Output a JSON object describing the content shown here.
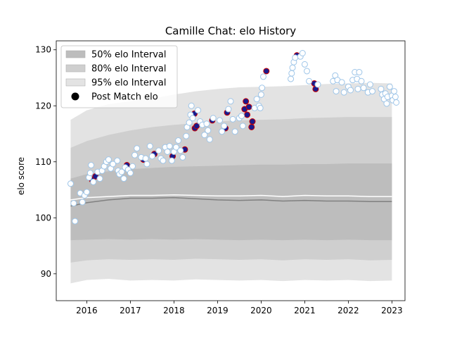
{
  "chart_data": {
    "type": "scatter",
    "title": "Camille Chat: elo History",
    "xlabel": "",
    "ylabel": "elo score",
    "xlim": [
      2015.3,
      2023.3
    ],
    "ylim": [
      85.2,
      131.6
    ],
    "x_ticks": [
      2016,
      2017,
      2018,
      2019,
      2020,
      2021,
      2022,
      2023
    ],
    "y_ticks": [
      90,
      100,
      110,
      120,
      130
    ],
    "grid": false,
    "legend_position": "top-left",
    "legend": [
      {
        "label": "50% elo Interval",
        "kind": "band",
        "color": "#bdbdbd"
      },
      {
        "label": "80% elo Interval",
        "kind": "band",
        "color": "#cfcfcf"
      },
      {
        "label": "95% elo Interval",
        "kind": "band",
        "color": "#e3e3e3"
      },
      {
        "label": "Post Match elo",
        "kind": "marker",
        "color": "#000000"
      }
    ],
    "colors": {
      "band_50": "#bdbdbd",
      "band_80": "#cfcfcf",
      "band_95": "#e3e3e3",
      "median_line": "#808080",
      "mean_line": "#ffffff",
      "point_win_fill": "#1a1a8c",
      "point_win_edge": "#cc0000",
      "point_loss_fill": "#ffffff",
      "point_loss_edge": "#9ec5e8"
    },
    "bands": {
      "x": [
        2015.63,
        2016.0,
        2016.5,
        2017.0,
        2017.5,
        2018.0,
        2018.5,
        2019.0,
        2019.5,
        2020.0,
        2020.5,
        2021.0,
        2021.5,
        2022.0,
        2022.5,
        2023.0
      ],
      "band95_low": [
        88.3,
        88.9,
        89.1,
        88.8,
        88.9,
        88.8,
        89.0,
        88.9,
        88.8,
        88.9,
        88.7,
        88.9,
        88.8,
        88.9,
        88.7,
        88.8
      ],
      "band95_high": [
        117.5,
        119.2,
        120.3,
        120.8,
        121.3,
        122.0,
        122.6,
        123.0,
        123.3,
        123.4,
        123.5,
        123.7,
        123.9,
        124.0,
        124.1,
        124.0
      ],
      "band80_low": [
        92.0,
        92.4,
        92.6,
        92.5,
        92.6,
        92.5,
        92.7,
        92.6,
        92.5,
        92.6,
        92.4,
        92.6,
        92.5,
        92.6,
        92.4,
        92.5
      ],
      "band80_high": [
        112.5,
        113.7,
        114.8,
        115.6,
        116.2,
        116.6,
        116.9,
        117.2,
        117.4,
        117.5,
        117.6,
        117.8,
        117.9,
        118.0,
        118.0,
        118.0
      ],
      "band50_low": [
        96.0,
        96.1,
        96.2,
        96.1,
        96.2,
        96.1,
        96.2,
        96.1,
        96.0,
        96.1,
        96.0,
        96.1,
        96.0,
        96.1,
        96.0,
        96.0
      ],
      "band50_high": [
        107.0,
        107.8,
        108.3,
        108.7,
        108.9,
        109.1,
        109.2,
        109.3,
        109.4,
        109.5,
        109.5,
        109.6,
        109.6,
        109.7,
        109.7,
        109.7
      ],
      "median": [
        102.1,
        102.7,
        103.2,
        103.5,
        103.5,
        103.6,
        103.4,
        103.2,
        103.1,
        103.2,
        103.0,
        103.1,
        103.0,
        103.0,
        102.9,
        102.9
      ],
      "mean": [
        103.2,
        103.6,
        103.8,
        104.0,
        104.0,
        104.1,
        104.0,
        103.9,
        103.9,
        104.0,
        103.8,
        104.0,
        103.9,
        103.9,
        103.8,
        103.8
      ]
    },
    "series": [
      {
        "name": "",
        "marker": "win",
        "points": [
          [
            2016.12,
            106.8
          ],
          [
            2016.2,
            107.4
          ],
          [
            2016.92,
            109.4
          ],
          [
            2017.3,
            110.4
          ],
          [
            2017.55,
            111.4
          ],
          [
            2017.97,
            111.0
          ],
          [
            2018.25,
            112.2
          ],
          [
            2018.47,
            118.6
          ],
          [
            2018.48,
            116.0
          ],
          [
            2018.52,
            116.4
          ],
          [
            2018.88,
            117.4
          ],
          [
            2019.18,
            116.0
          ],
          [
            2019.22,
            118.8
          ],
          [
            2019.62,
            119.4
          ],
          [
            2019.65,
            120.8
          ],
          [
            2019.68,
            118.4
          ],
          [
            2019.72,
            119.8
          ],
          [
            2019.78,
            116.2
          ],
          [
            2019.8,
            117.2
          ],
          [
            2020.12,
            126.2
          ],
          [
            2020.82,
            129.0
          ],
          [
            2021.22,
            124.0
          ],
          [
            2021.25,
            123.0
          ]
        ]
      },
      {
        "name": "",
        "marker": "loss",
        "points": [
          [
            2015.63,
            106.1
          ],
          [
            2015.7,
            102.6
          ],
          [
            2015.73,
            99.4
          ],
          [
            2015.85,
            104.4
          ],
          [
            2015.9,
            102.8
          ],
          [
            2015.95,
            104.0
          ],
          [
            2016.0,
            104.6
          ],
          [
            2016.05,
            107.2
          ],
          [
            2016.08,
            108.0
          ],
          [
            2016.1,
            109.4
          ],
          [
            2016.15,
            106.4
          ],
          [
            2016.25,
            108.2
          ],
          [
            2016.3,
            107.0
          ],
          [
            2016.35,
            108.4
          ],
          [
            2016.4,
            109.2
          ],
          [
            2016.45,
            110.0
          ],
          [
            2016.5,
            110.4
          ],
          [
            2016.55,
            108.8
          ],
          [
            2016.6,
            109.6
          ],
          [
            2016.7,
            110.2
          ],
          [
            2016.72,
            108.4
          ],
          [
            2016.75,
            107.8
          ],
          [
            2016.8,
            108.2
          ],
          [
            2016.85,
            107.0
          ],
          [
            2016.88,
            109.0
          ],
          [
            2016.95,
            108.6
          ],
          [
            2017.0,
            108.0
          ],
          [
            2017.05,
            109.2
          ],
          [
            2017.1,
            111.2
          ],
          [
            2017.15,
            112.4
          ],
          [
            2017.25,
            110.8
          ],
          [
            2017.35,
            110.6
          ],
          [
            2017.38,
            109.6
          ],
          [
            2017.45,
            112.8
          ],
          [
            2017.5,
            111.0
          ],
          [
            2017.65,
            112.0
          ],
          [
            2017.7,
            110.6
          ],
          [
            2017.75,
            110.2
          ],
          [
            2017.8,
            112.6
          ],
          [
            2017.85,
            111.8
          ],
          [
            2017.9,
            112.8
          ],
          [
            2017.95,
            110.2
          ],
          [
            2018.0,
            111.8
          ],
          [
            2018.05,
            112.6
          ],
          [
            2018.1,
            113.8
          ],
          [
            2018.15,
            112.0
          ],
          [
            2018.2,
            110.8
          ],
          [
            2018.28,
            114.6
          ],
          [
            2018.3,
            116.2
          ],
          [
            2018.35,
            117.0
          ],
          [
            2018.38,
            118.4
          ],
          [
            2018.4,
            120.0
          ],
          [
            2018.43,
            117.8
          ],
          [
            2018.55,
            119.2
          ],
          [
            2018.6,
            117.2
          ],
          [
            2018.65,
            116.6
          ],
          [
            2018.7,
            114.8
          ],
          [
            2018.75,
            116.8
          ],
          [
            2018.78,
            115.6
          ],
          [
            2018.82,
            114.0
          ],
          [
            2018.9,
            117.8
          ],
          [
            2019.05,
            117.4
          ],
          [
            2019.1,
            115.4
          ],
          [
            2019.15,
            116.4
          ],
          [
            2019.25,
            119.4
          ],
          [
            2019.3,
            120.8
          ],
          [
            2019.35,
            117.6
          ],
          [
            2019.4,
            115.4
          ],
          [
            2019.5,
            117.8
          ],
          [
            2019.55,
            118.2
          ],
          [
            2019.58,
            116.4
          ],
          [
            2019.85,
            119.6
          ],
          [
            2019.9,
            121.2
          ],
          [
            2019.95,
            120.0
          ],
          [
            2019.98,
            119.6
          ],
          [
            2020.0,
            122.0
          ],
          [
            2020.02,
            123.2
          ],
          [
            2020.05,
            125.2
          ],
          [
            2020.68,
            124.8
          ],
          [
            2020.7,
            125.8
          ],
          [
            2020.72,
            126.8
          ],
          [
            2020.75,
            127.8
          ],
          [
            2020.78,
            128.6
          ],
          [
            2020.9,
            128.8
          ],
          [
            2020.95,
            129.4
          ],
          [
            2021.0,
            127.4
          ],
          [
            2021.05,
            126.2
          ],
          [
            2021.1,
            124.4
          ],
          [
            2021.3,
            123.8
          ],
          [
            2021.65,
            124.4
          ],
          [
            2021.7,
            125.4
          ],
          [
            2021.72,
            122.6
          ],
          [
            2021.75,
            124.6
          ],
          [
            2021.85,
            124.2
          ],
          [
            2021.9,
            122.4
          ],
          [
            2022.0,
            123.4
          ],
          [
            2022.05,
            122.8
          ],
          [
            2022.1,
            124.6
          ],
          [
            2022.15,
            126.0
          ],
          [
            2022.2,
            124.8
          ],
          [
            2022.22,
            123.0
          ],
          [
            2022.25,
            126.0
          ],
          [
            2022.3,
            124.4
          ],
          [
            2022.35,
            123.2
          ],
          [
            2022.45,
            122.4
          ],
          [
            2022.5,
            123.8
          ],
          [
            2022.55,
            122.6
          ],
          [
            2022.75,
            123.0
          ],
          [
            2022.78,
            122.0
          ],
          [
            2022.82,
            121.2
          ],
          [
            2022.85,
            122.2
          ],
          [
            2022.88,
            120.4
          ],
          [
            2022.9,
            121.6
          ],
          [
            2022.95,
            123.4
          ],
          [
            2023.0,
            121.8
          ],
          [
            2023.02,
            121.0
          ],
          [
            2023.05,
            122.6
          ],
          [
            2023.08,
            121.6
          ],
          [
            2023.1,
            120.6
          ]
        ]
      }
    ]
  }
}
